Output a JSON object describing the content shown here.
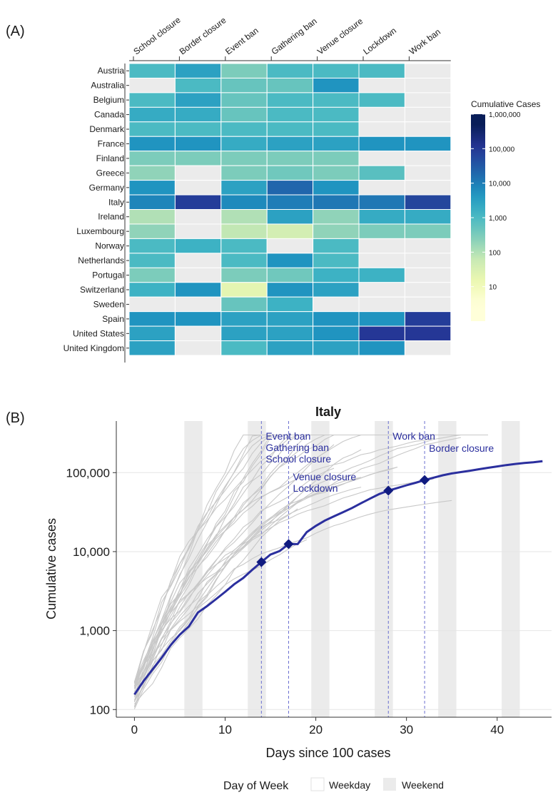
{
  "panels": {
    "a_label": "(A)",
    "b_label": "(B)"
  },
  "chart_data": [
    {
      "type": "heatmap",
      "columns": [
        "School closure",
        "Border closure",
        "Event ban",
        "Gathering ban",
        "Venue closure",
        "Lockdown",
        "Work ban"
      ],
      "rows": [
        "Austria",
        "Australia",
        "Belgium",
        "Canada",
        "Denmark",
        "France",
        "Finland",
        "Greece",
        "Germany",
        "Italy",
        "Ireland",
        "Luxembourg",
        "Norway",
        "Netherlands",
        "Portugal",
        "Switzerland",
        "Sweden",
        "Spain",
        "United States",
        "United Kingdom"
      ],
      "values": [
        [
          1000,
          3000,
          300,
          1000,
          1000,
          1000,
          null
        ],
        [
          null,
          1000,
          500,
          500,
          5000,
          null,
          null
        ],
        [
          1000,
          3000,
          500,
          1000,
          1000,
          1000,
          null
        ],
        [
          2000,
          2000,
          500,
          1000,
          1000,
          null,
          null
        ],
        [
          1000,
          1000,
          1000,
          1000,
          1000,
          null,
          null
        ],
        [
          5000,
          5000,
          2000,
          3000,
          3000,
          5000,
          5000
        ],
        [
          300,
          300,
          300,
          300,
          300,
          null,
          null
        ],
        [
          200,
          null,
          300,
          400,
          300,
          700,
          null
        ],
        [
          5000,
          null,
          3000,
          20000,
          5000,
          null,
          null
        ],
        [
          8000,
          80000,
          7000,
          10000,
          12000,
          12000,
          60000
        ],
        [
          100,
          null,
          100,
          3000,
          200,
          2000,
          2000
        ],
        [
          200,
          null,
          70,
          40,
          200,
          300,
          300
        ],
        [
          1000,
          1500,
          1000,
          null,
          1000,
          null,
          null
        ],
        [
          1000,
          null,
          1000,
          5000,
          1000,
          null,
          null
        ],
        [
          300,
          null,
          300,
          400,
          1500,
          1500,
          null
        ],
        [
          1500,
          5000,
          20,
          5000,
          3000,
          null,
          null
        ],
        [
          null,
          null,
          500,
          1500,
          null,
          null,
          null
        ],
        [
          5000,
          5000,
          3000,
          3000,
          5000,
          5000,
          80000
        ],
        [
          3000,
          null,
          3000,
          3000,
          5000,
          100000,
          100000
        ],
        [
          3000,
          null,
          1000,
          3000,
          3000,
          5000,
          null
        ]
      ],
      "legend": {
        "title": "Cumulative Cases",
        "ticks": [
          "1,000,000",
          "100,000",
          "10,000",
          "1,000",
          "100",
          "10"
        ],
        "tick_values": [
          1000000,
          100000,
          10000,
          1000,
          100,
          10
        ],
        "scale": "log10",
        "range": [
          1,
          1000000
        ]
      },
      "missing_color": "#ebebeb"
    },
    {
      "type": "line",
      "title": "Italy",
      "xlabel": "Days since 100 cases",
      "ylabel": "Cumulative cases",
      "x_ticks": [
        "0",
        "10",
        "20",
        "30",
        "40"
      ],
      "x_tick_values": [
        0,
        10,
        20,
        30,
        40
      ],
      "y_ticks": [
        "100",
        "1,000",
        "10,000",
        "100,000"
      ],
      "y_tick_values": [
        100,
        1000,
        10000,
        100000
      ],
      "y_scale": "log10",
      "xlim": [
        -2,
        46
      ],
      "ylim": [
        80,
        450000
      ],
      "highlight_color": "#2b2f9e",
      "series": [
        {
          "name": "Italy",
          "x": [
            0,
            1,
            2,
            3,
            4,
            5,
            6,
            7,
            8,
            9,
            10,
            11,
            12,
            13,
            14,
            15,
            16,
            17,
            18,
            19,
            20,
            21,
            22,
            23,
            24,
            25,
            26,
            27,
            28,
            29,
            30,
            31,
            32,
            33,
            34,
            35,
            36,
            37,
            38,
            39,
            40,
            41,
            42,
            43,
            44,
            45
          ],
          "y": [
            155,
            229,
            322,
            453,
            655,
            888,
            1128,
            1694,
            2036,
            2502,
            3089,
            3858,
            4636,
            5883,
            7375,
            9172,
            10149,
            12462,
            12462,
            17660,
            21157,
            24747,
            27980,
            31506,
            35713,
            41035,
            47021,
            53578,
            59138,
            63927,
            69176,
            74386,
            80589,
            86498,
            92472,
            97689,
            101739,
            105792,
            110574,
            115242,
            119827,
            124632,
            128948,
            132547,
            135586,
            139422
          ]
        }
      ],
      "markers": [
        {
          "x": 14,
          "y": 7375
        },
        {
          "x": 17,
          "y": 12462
        },
        {
          "x": 28,
          "y": 59138
        },
        {
          "x": 32,
          "y": 80589
        }
      ],
      "interventions": [
        {
          "day": 14,
          "labels": [
            "Event ban",
            "Gathering ban",
            "School closure"
          ]
        },
        {
          "day": 17,
          "labels": [
            "Venue closure",
            "Lockdown"
          ]
        },
        {
          "day": 28,
          "labels": [
            "Work ban"
          ]
        },
        {
          "day": 32,
          "labels": [
            "Border closure"
          ]
        }
      ],
      "weekend_bands": [
        [
          5.5,
          7.5
        ],
        [
          12.5,
          14.5
        ],
        [
          19.5,
          21.5
        ],
        [
          26.5,
          28.5
        ],
        [
          33.5,
          35.5
        ],
        [
          40.5,
          42.5
        ]
      ],
      "legend": {
        "title": "Day of Week",
        "entries": [
          "Weekday",
          "Weekend"
        ],
        "placement": "bottom"
      }
    }
  ]
}
